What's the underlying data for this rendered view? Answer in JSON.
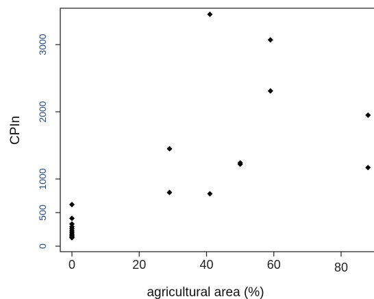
{
  "chart_data": {
    "type": "scatter",
    "title": "",
    "xlabel": "agricultural area (%)",
    "ylabel": "CPIn",
    "xlim": [
      -3,
      88
    ],
    "ylim": [
      -30,
      3510
    ],
    "x_ticks": [
      0,
      20,
      40,
      60,
      80
    ],
    "x_tick_labels": [
      "0",
      "20",
      "40",
      "60",
      "80"
    ],
    "y_ticks": [
      0,
      500,
      1000,
      2000,
      3000
    ],
    "y_tick_labels": [
      "0",
      "500",
      "1000",
      "2000",
      "3000"
    ],
    "grid": false,
    "legend": "none",
    "series": [
      {
        "marker": "diamond",
        "color": "#000000",
        "points": [
          {
            "x": 0,
            "y": 620
          },
          {
            "x": 0,
            "y": 415
          },
          {
            "x": 0,
            "y": 330
          },
          {
            "x": 0,
            "y": 290
          },
          {
            "x": 0,
            "y": 260
          },
          {
            "x": 0,
            "y": 230
          },
          {
            "x": 0,
            "y": 205
          },
          {
            "x": 0,
            "y": 180
          },
          {
            "x": 0,
            "y": 160
          },
          {
            "x": 0,
            "y": 140
          },
          {
            "x": 0,
            "y": 125
          },
          {
            "x": 29,
            "y": 1450
          },
          {
            "x": 29,
            "y": 800
          },
          {
            "x": 41,
            "y": 3450
          },
          {
            "x": 41,
            "y": 780
          },
          {
            "x": 50,
            "y": 1240
          },
          {
            "x": 50,
            "y": 1220
          },
          {
            "x": 59,
            "y": 3070
          },
          {
            "x": 59,
            "y": 2310
          },
          {
            "x": 88,
            "y": 1950
          },
          {
            "x": 88,
            "y": 1170
          }
        ]
      }
    ]
  }
}
